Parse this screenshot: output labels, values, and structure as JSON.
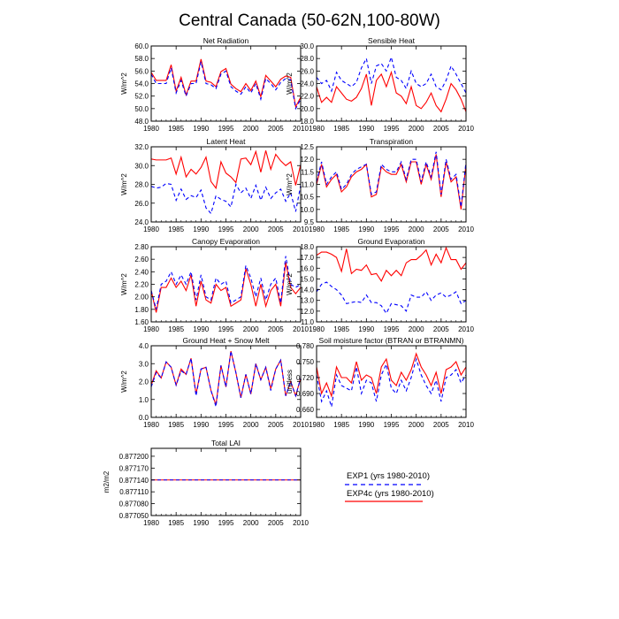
{
  "figure": {
    "title": "Central Canada (50-62N,100-80W)"
  },
  "colors": {
    "exp1": "#0000ff",
    "exp4c": "#ff0000",
    "axis": "#000000"
  },
  "legend": {
    "placement": "bottom-right",
    "entries": [
      {
        "label": "EXP1 (yrs 1980-2010)",
        "style": "dashed",
        "color": "#0000ff"
      },
      {
        "label": "EXP4c (yrs 1980-2010)",
        "style": "solid",
        "color": "#ff0000"
      }
    ]
  },
  "chart_data": [
    {
      "type": "line",
      "title": "Net Radiation",
      "ylabel": "W/m^2",
      "xlim": [
        1980,
        2010
      ],
      "xticks": [
        "1980",
        "1985",
        "1990",
        "1995",
        "2000",
        "2005",
        "2010"
      ],
      "ylim": [
        48.0,
        60.0
      ],
      "yticks": [
        "48.0",
        "50.0",
        "52.0",
        "54.0",
        "56.0",
        "58.0",
        "60.0"
      ],
      "x": [
        1980,
        1981,
        1982,
        1983,
        1984,
        1985,
        1986,
        1987,
        1988,
        1989,
        1990,
        1991,
        1992,
        1993,
        1994,
        1995,
        1996,
        1997,
        1998,
        1999,
        2000,
        2001,
        2002,
        2003,
        2004,
        2005,
        2006,
        2007,
        2008,
        2009,
        2010
      ],
      "series": [
        {
          "name": "EXP1",
          "values": [
            55.5,
            54.0,
            54.0,
            54.0,
            56.5,
            52.5,
            54.5,
            52.0,
            54.0,
            54.0,
            57.5,
            54.0,
            53.8,
            53.2,
            55.5,
            56.0,
            53.5,
            52.8,
            52.3,
            53.5,
            52.5,
            54.0,
            51.5,
            54.8,
            54.0,
            53.0,
            54.2,
            54.8,
            54.6,
            50.0,
            51.5
          ]
        },
        {
          "name": "EXP4c",
          "values": [
            55.8,
            54.5,
            54.5,
            54.5,
            57.0,
            52.8,
            55.0,
            52.2,
            54.4,
            54.4,
            57.9,
            54.4,
            54.2,
            53.5,
            55.9,
            56.4,
            53.9,
            53.2,
            52.7,
            54.0,
            52.9,
            54.4,
            51.9,
            55.3,
            54.4,
            53.5,
            54.7,
            55.2,
            55.0,
            50.3,
            51.8
          ]
        }
      ]
    },
    {
      "type": "line",
      "title": "Sensible Heat",
      "ylabel": "W/m^2",
      "xlim": [
        1980,
        2010
      ],
      "xticks": [
        "1980",
        "1985",
        "1990",
        "1995",
        "2000",
        "2005",
        "2010"
      ],
      "ylim": [
        18.0,
        30.0
      ],
      "yticks": [
        "18.0",
        "20.0",
        "22.0",
        "24.0",
        "26.0",
        "28.0",
        "30.0"
      ],
      "x": [
        1980,
        1981,
        1982,
        1983,
        1984,
        1985,
        1986,
        1987,
        1988,
        1989,
        1990,
        1991,
        1992,
        1993,
        1994,
        1995,
        1996,
        1997,
        1998,
        1999,
        2000,
        2001,
        2002,
        2003,
        2004,
        2005,
        2006,
        2007,
        2008,
        2009,
        2010
      ],
      "series": [
        {
          "name": "EXP1",
          "values": [
            25.0,
            24.0,
            24.5,
            22.8,
            25.8,
            24.5,
            24.0,
            23.5,
            24.2,
            26.5,
            28.0,
            24.0,
            26.8,
            27.2,
            26.0,
            28.2,
            25.0,
            24.5,
            23.2,
            26.0,
            24.0,
            23.5,
            24.0,
            25.5,
            23.5,
            23.0,
            24.5,
            26.8,
            25.5,
            24.0,
            22.5
          ]
        },
        {
          "name": "EXP4c",
          "values": [
            23.5,
            21.0,
            21.8,
            21.0,
            23.5,
            22.5,
            21.5,
            21.2,
            21.8,
            23.2,
            25.5,
            20.5,
            24.5,
            25.5,
            23.5,
            25.8,
            22.5,
            22.0,
            20.8,
            23.5,
            20.5,
            20.0,
            21.0,
            22.5,
            20.5,
            19.5,
            21.5,
            24.0,
            23.0,
            21.5,
            19.5
          ]
        }
      ]
    },
    {
      "type": "line",
      "title": "Latent Heat",
      "ylabel": "W/m^2",
      "xlim": [
        1980,
        2010
      ],
      "xticks": [
        "1980",
        "1985",
        "1990",
        "1995",
        "2000",
        "2005",
        "2010"
      ],
      "ylim": [
        24.0,
        32.0
      ],
      "yticks": [
        "24.0",
        "26.0",
        "28.0",
        "30.0",
        "32.0"
      ],
      "x": [
        1980,
        1981,
        1982,
        1983,
        1984,
        1985,
        1986,
        1987,
        1988,
        1989,
        1990,
        1991,
        1992,
        1993,
        1994,
        1995,
        1996,
        1997,
        1998,
        1999,
        2000,
        2001,
        2002,
        2003,
        2004,
        2005,
        2006,
        2007,
        2008,
        2009,
        2010
      ],
      "series": [
        {
          "name": "EXP1",
          "values": [
            27.8,
            27.6,
            27.7,
            28.1,
            28.0,
            26.3,
            27.5,
            26.4,
            26.8,
            26.6,
            27.4,
            25.5,
            24.9,
            26.8,
            26.4,
            26.2,
            25.6,
            28.0,
            27.1,
            27.6,
            26.5,
            27.9,
            26.3,
            27.7,
            26.5,
            27.1,
            27.5,
            26.2,
            27.1,
            25.1,
            27.9
          ]
        },
        {
          "name": "EXP4c",
          "values": [
            30.7,
            30.6,
            30.6,
            30.6,
            30.8,
            29.1,
            30.9,
            28.8,
            29.6,
            29.1,
            29.8,
            30.9,
            28.3,
            27.6,
            30.4,
            29.2,
            28.8,
            28.2,
            30.7,
            30.8,
            30.1,
            31.5,
            29.3,
            31.6,
            29.6,
            31.2,
            30.5,
            30.0,
            30.4,
            27.9,
            30.1
          ]
        }
      ]
    },
    {
      "type": "line",
      "title": "Transpiration",
      "ylabel": "W/m^2",
      "xlim": [
        1980,
        2010
      ],
      "xticks": [
        "1980",
        "1985",
        "1990",
        "1995",
        "2000",
        "2005",
        "2010"
      ],
      "ylim": [
        9.5,
        12.5
      ],
      "yticks": [
        "9.5",
        "10.0",
        "10.5",
        "11.0",
        "11.5",
        "12.0",
        "12.5"
      ],
      "x": [
        1980,
        1981,
        1982,
        1983,
        1984,
        1985,
        1986,
        1987,
        1988,
        1989,
        1990,
        1991,
        1992,
        1993,
        1994,
        1995,
        1996,
        1997,
        1998,
        1999,
        2000,
        2001,
        2002,
        2003,
        2004,
        2005,
        2006,
        2007,
        2008,
        2009,
        2010
      ],
      "series": [
        {
          "name": "EXP1",
          "values": [
            11.1,
            11.9,
            11.0,
            11.3,
            11.5,
            10.8,
            11.0,
            11.4,
            11.6,
            11.7,
            11.8,
            10.6,
            10.7,
            11.8,
            11.6,
            11.5,
            11.5,
            11.9,
            11.2,
            12.0,
            12.0,
            11.1,
            11.9,
            11.3,
            12.3,
            10.6,
            12.0,
            11.2,
            11.4,
            10.1,
            11.9
          ]
        },
        {
          "name": "EXP4c",
          "values": [
            11.0,
            11.8,
            10.9,
            11.2,
            11.4,
            10.7,
            10.9,
            11.3,
            11.5,
            11.6,
            11.8,
            10.5,
            10.6,
            11.7,
            11.5,
            11.4,
            11.4,
            11.8,
            11.1,
            11.9,
            11.9,
            11.0,
            11.8,
            11.2,
            12.2,
            10.5,
            11.9,
            11.1,
            11.3,
            10.0,
            11.8
          ]
        }
      ]
    },
    {
      "type": "line",
      "title": "Canopy Evaporation",
      "ylabel": "W/m^2",
      "xlim": [
        1980,
        2010
      ],
      "xticks": [
        "1980",
        "1985",
        "1990",
        "1995",
        "2000",
        "2005",
        "2010"
      ],
      "ylim": [
        1.6,
        2.8
      ],
      "yticks": [
        "1.60",
        "1.80",
        "2.00",
        "2.20",
        "2.40",
        "2.60",
        "2.80"
      ],
      "x": [
        1980,
        1981,
        1982,
        1983,
        1984,
        1985,
        1986,
        1987,
        1988,
        1989,
        1990,
        1991,
        1992,
        1993,
        1994,
        1995,
        1996,
        1997,
        1998,
        1999,
        2000,
        2001,
        2002,
        2003,
        2004,
        2005,
        2006,
        2007,
        2008,
        2009,
        2010
      ],
      "series": [
        {
          "name": "EXP1",
          "values": [
            2.1,
            1.8,
            2.2,
            2.25,
            2.4,
            2.2,
            2.35,
            2.2,
            2.4,
            1.95,
            2.35,
            2.0,
            1.95,
            2.3,
            2.2,
            2.25,
            1.9,
            1.95,
            2.0,
            2.5,
            2.3,
            2.0,
            2.3,
            1.95,
            2.2,
            2.3,
            1.9,
            2.65,
            2.2,
            2.15,
            2.2
          ]
        },
        {
          "name": "EXP4c",
          "values": [
            2.1,
            1.75,
            2.15,
            2.15,
            2.3,
            2.15,
            2.25,
            2.1,
            2.35,
            1.85,
            2.25,
            1.95,
            1.9,
            2.2,
            2.1,
            2.15,
            1.85,
            1.9,
            1.95,
            2.45,
            2.2,
            1.85,
            2.2,
            1.85,
            2.1,
            2.2,
            1.85,
            2.55,
            2.15,
            2.05,
            2.15
          ]
        }
      ]
    },
    {
      "type": "line",
      "title": "Ground Evaporation",
      "ylabel": "W/m^2",
      "xlim": [
        1980,
        2010
      ],
      "xticks": [
        "1980",
        "1985",
        "1990",
        "1995",
        "2000",
        "2005",
        "2010"
      ],
      "ylim": [
        11.0,
        18.0
      ],
      "yticks": [
        "11.0",
        "12.0",
        "13.0",
        "14.0",
        "15.0",
        "16.0",
        "17.0",
        "18.0"
      ],
      "x": [
        1980,
        1981,
        1982,
        1983,
        1984,
        1985,
        1986,
        1987,
        1988,
        1989,
        1990,
        1991,
        1992,
        1993,
        1994,
        1995,
        1996,
        1997,
        1998,
        1999,
        2000,
        2001,
        2002,
        2003,
        2004,
        2005,
        2006,
        2007,
        2008,
        2009,
        2010
      ],
      "series": [
        {
          "name": "EXP1",
          "values": [
            13.8,
            14.5,
            14.7,
            14.3,
            14.0,
            13.5,
            12.7,
            12.8,
            12.9,
            12.8,
            13.5,
            12.8,
            12.8,
            12.5,
            11.8,
            12.7,
            12.6,
            12.5,
            12.0,
            13.5,
            13.3,
            13.3,
            13.8,
            13.0,
            13.5,
            13.7,
            13.3,
            13.5,
            13.8,
            12.7,
            13.0
          ]
        },
        {
          "name": "EXP4c",
          "values": [
            17.2,
            17.5,
            17.5,
            17.3,
            17.0,
            15.7,
            17.8,
            15.5,
            15.9,
            15.8,
            16.3,
            15.4,
            15.5,
            14.8,
            15.8,
            15.3,
            15.8,
            15.3,
            16.5,
            16.8,
            16.8,
            17.2,
            17.7,
            16.3,
            17.3,
            16.5,
            17.9,
            16.8,
            16.8,
            15.9,
            16.5
          ]
        }
      ]
    },
    {
      "type": "line",
      "title": "Ground Heat + Snow Melt",
      "ylabel": "W/m^2",
      "xlim": [
        1980,
        2010
      ],
      "xticks": [
        "1980",
        "1985",
        "1990",
        "1995",
        "2000",
        "2005",
        "2010"
      ],
      "ylim": [
        0.0,
        4.0
      ],
      "yticks": [
        "0.0",
        "1.0",
        "2.0",
        "3.0",
        "4.0"
      ],
      "x": [
        1980,
        1981,
        1982,
        1983,
        1984,
        1985,
        1986,
        1987,
        1988,
        1989,
        1990,
        1991,
        1992,
        1993,
        1994,
        1995,
        1996,
        1997,
        1998,
        1999,
        2000,
        2001,
        2002,
        2003,
        2004,
        2005,
        2006,
        2007,
        2008,
        2009,
        2010
      ],
      "series": [
        {
          "name": "EXP1",
          "values": [
            1.7,
            2.5,
            2.2,
            3.1,
            2.8,
            1.8,
            2.6,
            2.4,
            3.3,
            1.2,
            2.7,
            2.8,
            1.5,
            0.6,
            2.9,
            1.7,
            3.7,
            2.5,
            1.1,
            2.4,
            1.3,
            3.0,
            2.1,
            2.8,
            1.5,
            2.7,
            3.2,
            1.2,
            2.0,
            1.2,
            2.2
          ]
        },
        {
          "name": "EXP4c",
          "values": [
            1.8,
            2.6,
            2.2,
            3.1,
            2.8,
            1.8,
            2.7,
            2.4,
            3.3,
            1.3,
            2.7,
            2.8,
            1.5,
            0.7,
            2.9,
            1.7,
            3.7,
            2.5,
            1.1,
            2.4,
            1.3,
            3.0,
            2.1,
            2.8,
            1.6,
            2.7,
            3.2,
            1.2,
            2.0,
            1.2,
            2.2
          ]
        }
      ]
    },
    {
      "type": "line",
      "title": "Soil moisture factor (BTRAN or BTRANMN)",
      "ylabel": "unitless",
      "xlim": [
        1980,
        2010
      ],
      "xticks": [
        "1980",
        "1985",
        "1990",
        "1995",
        "2000",
        "2005",
        "2010"
      ],
      "ylim": [
        0.645,
        0.78
      ],
      "yticks": [
        "0.660",
        "0.690",
        "0.720",
        "0.750",
        "0.780"
      ],
      "x": [
        1980,
        1981,
        1982,
        1983,
        1984,
        1985,
        1986,
        1987,
        1988,
        1989,
        1990,
        1991,
        1992,
        1993,
        1994,
        1995,
        1996,
        1997,
        1998,
        1999,
        2000,
        2001,
        2002,
        2003,
        2004,
        2005,
        2006,
        2007,
        2008,
        2009,
        2010
      ],
      "series": [
        {
          "name": "EXP1",
          "values": [
            0.725,
            0.675,
            0.695,
            0.665,
            0.725,
            0.705,
            0.7,
            0.695,
            0.74,
            0.69,
            0.715,
            0.71,
            0.675,
            0.725,
            0.745,
            0.7,
            0.69,
            0.715,
            0.695,
            0.72,
            0.755,
            0.725,
            0.705,
            0.69,
            0.715,
            0.675,
            0.72,
            0.725,
            0.735,
            0.71,
            0.725
          ]
        },
        {
          "name": "EXP4c",
          "values": [
            0.74,
            0.69,
            0.71,
            0.685,
            0.74,
            0.72,
            0.72,
            0.71,
            0.75,
            0.715,
            0.725,
            0.72,
            0.69,
            0.74,
            0.755,
            0.715,
            0.705,
            0.73,
            0.715,
            0.735,
            0.765,
            0.74,
            0.725,
            0.705,
            0.73,
            0.69,
            0.735,
            0.74,
            0.75,
            0.725,
            0.74
          ]
        }
      ]
    },
    {
      "type": "line",
      "title": "Total LAI",
      "ylabel": "m2/m2",
      "xlim": [
        1980,
        2010
      ],
      "xticks": [
        "1980",
        "1985",
        "1990",
        "1995",
        "2000",
        "2005",
        "2010"
      ],
      "ylim": [
        0.87705,
        0.87722
      ],
      "yticks": [
        "0.877050",
        "0.877080",
        "0.877110",
        "0.877140",
        "0.877170",
        "0.877200"
      ],
      "x": [
        1980,
        2010
      ],
      "series": [
        {
          "name": "EXP1",
          "values": [
            0.87714,
            0.87714
          ]
        },
        {
          "name": "EXP4c",
          "values": [
            0.87714,
            0.87714
          ]
        }
      ]
    }
  ]
}
